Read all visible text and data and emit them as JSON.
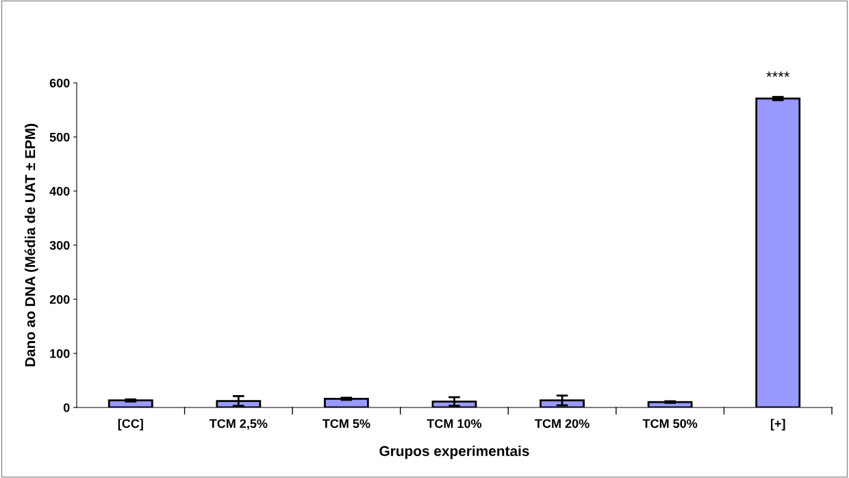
{
  "chart_data": {
    "type": "bar",
    "xlabel": "Grupos experimentais",
    "ylabel": "Dano ao DNA (Média de UAT ± EPM)",
    "categories": [
      "[CC]",
      "TCM 2,5%",
      "TCM 5%",
      "TCM 10%",
      "TCM 20%",
      "TCM 50%",
      "[+]"
    ],
    "values": [
      13,
      12,
      16,
      11,
      13,
      10,
      571
    ],
    "errors": [
      2,
      9,
      2,
      8,
      9,
      1.5,
      3
    ],
    "color": "#9999ff",
    "ylim": [
      0,
      600
    ],
    "yticks": [
      0,
      100,
      200,
      300,
      400,
      500,
      600
    ],
    "grid": false,
    "legend": false,
    "annotations": [
      "****"
    ]
  }
}
